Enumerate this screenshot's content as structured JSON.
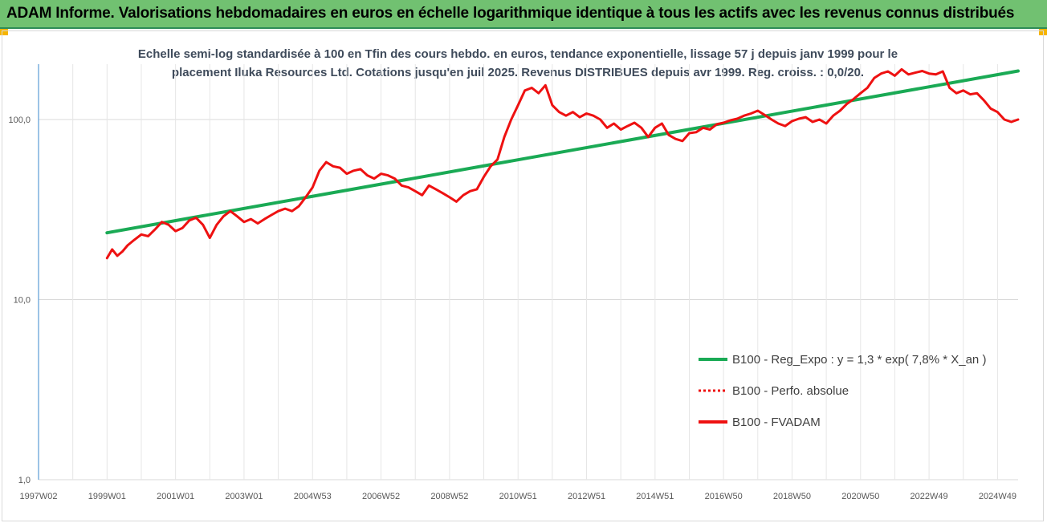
{
  "header": {
    "title": "ADAM Informe. Valorisations hebdomadaires en euros en échelle logarithmique identique à tous les actifs avec les revenus connus distribués"
  },
  "colors": {
    "header_bg": "#71c171",
    "trend": "#1aaa55",
    "fvadam": "#ee1111",
    "perfo": "#ee1111",
    "grid": "#d9d9d9",
    "axis": "#5b9bd5"
  },
  "chart_data": {
    "type": "line",
    "title": "Echelle semi-log standardisée à 100 en Tfin des cours hebdo. en euros, tendance exponentielle, lissage 57 j depuis janv 1999 pour le placement Iluka Resources Ltd. Cotations jusqu'en juil 2025. Revenus DISTRIBUES depuis avr 1999. Reg. croiss. : 0,0/20.",
    "subtitle_line1": "Echelle semi-log standardisée à 100 en Tfin des cours hebdo. en euros, tendance exponentielle, lissage 57 j depuis janv 1999 pour le",
    "subtitle_line2": "placement Iluka Resources Ltd. Cotations jusqu'en juil 2025. Revenus DISTRIBUES depuis avr 1999. Reg. croiss. : 0,0/20.",
    "y_scale": "log",
    "ylim": [
      1,
      200
    ],
    "y_ticks": [
      {
        "value": 1,
        "label": "1,0"
      },
      {
        "value": 10,
        "label": "10,0"
      },
      {
        "value": 100,
        "label": "100,0"
      }
    ],
    "x_range": [
      1997.0,
      2025.6
    ],
    "x_ticks": [
      {
        "value": 1997.0,
        "label": "1997W02"
      },
      {
        "value": 1999.0,
        "label": "1999W01"
      },
      {
        "value": 2001.0,
        "label": "2001W01"
      },
      {
        "value": 2003.0,
        "label": "2003W01"
      },
      {
        "value": 2005.0,
        "label": "2004W53"
      },
      {
        "value": 2007.0,
        "label": "2006W52"
      },
      {
        "value": 2009.0,
        "label": "2008W52"
      },
      {
        "value": 2011.0,
        "label": "2010W51"
      },
      {
        "value": 2013.0,
        "label": "2012W51"
      },
      {
        "value": 2015.0,
        "label": "2014W51"
      },
      {
        "value": 2017.0,
        "label": "2016W50"
      },
      {
        "value": 2019.0,
        "label": "2018W50"
      },
      {
        "value": 2021.0,
        "label": "2020W50"
      },
      {
        "value": 2023.0,
        "label": "2022W49"
      },
      {
        "value": 2025.0,
        "label": "2024W49"
      }
    ],
    "grid": "vertical",
    "legend_position": "bottom-right",
    "series": [
      {
        "name": "B100 - Reg_Expo : y = 1,3 * exp( 7,8% *  X_an )",
        "style": "solid",
        "color": "#1aaa55",
        "x": [
          1999.0,
          2025.6
        ],
        "y": [
          23.5,
          186
        ]
      },
      {
        "name": "B100 - Perfo. absolue",
        "style": "dotted",
        "color": "#ee1111",
        "x": [],
        "y": []
      },
      {
        "name": "B100 - FVADAM",
        "style": "solid",
        "color": "#ee1111",
        "x": [
          1999.0,
          1999.15,
          1999.3,
          1999.45,
          1999.6,
          1999.8,
          2000.0,
          2000.2,
          2000.4,
          2000.6,
          2000.8,
          2001.0,
          2001.2,
          2001.4,
          2001.6,
          2001.8,
          2002.0,
          2002.2,
          2002.4,
          2002.6,
          2002.8,
          2003.0,
          2003.2,
          2003.4,
          2003.6,
          2003.8,
          2004.0,
          2004.2,
          2004.4,
          2004.6,
          2004.8,
          2005.0,
          2005.2,
          2005.4,
          2005.6,
          2005.8,
          2006.0,
          2006.2,
          2006.4,
          2006.6,
          2006.8,
          2007.0,
          2007.2,
          2007.4,
          2007.6,
          2007.8,
          2008.0,
          2008.2,
          2008.4,
          2008.6,
          2008.8,
          2009.0,
          2009.2,
          2009.4,
          2009.6,
          2009.8,
          2010.0,
          2010.2,
          2010.4,
          2010.6,
          2010.8,
          2011.0,
          2011.2,
          2011.4,
          2011.6,
          2011.8,
          2012.0,
          2012.2,
          2012.4,
          2012.6,
          2012.8,
          2013.0,
          2013.2,
          2013.4,
          2013.6,
          2013.8,
          2014.0,
          2014.2,
          2014.4,
          2014.6,
          2014.8,
          2015.0,
          2015.2,
          2015.4,
          2015.6,
          2015.8,
          2016.0,
          2016.2,
          2016.4,
          2016.6,
          2016.8,
          2017.0,
          2017.2,
          2017.4,
          2017.6,
          2017.8,
          2018.0,
          2018.2,
          2018.4,
          2018.6,
          2018.8,
          2019.0,
          2019.2,
          2019.4,
          2019.6,
          2019.8,
          2020.0,
          2020.2,
          2020.4,
          2020.6,
          2020.8,
          2021.0,
          2021.2,
          2021.4,
          2021.6,
          2021.8,
          2022.0,
          2022.2,
          2022.4,
          2022.6,
          2022.8,
          2023.0,
          2023.2,
          2023.4,
          2023.6,
          2023.8,
          2024.0,
          2024.2,
          2024.4,
          2024.6,
          2024.8,
          2025.0,
          2025.2,
          2025.4,
          2025.6
        ],
        "y": [
          17,
          19,
          17.5,
          18.5,
          20,
          21.5,
          23,
          22.5,
          24.5,
          27,
          26,
          24,
          25,
          27.5,
          28.5,
          26,
          22,
          26,
          29,
          31,
          29,
          27,
          28,
          26.5,
          28,
          29.5,
          31,
          32,
          31,
          33,
          37,
          42,
          52,
          58,
          55,
          54,
          50,
          52,
          53,
          49,
          47,
          50,
          49,
          47,
          43,
          42,
          40,
          38,
          43,
          41,
          39,
          37,
          35,
          38,
          40,
          41,
          48,
          55,
          60,
          80,
          100,
          120,
          145,
          150,
          140,
          155,
          120,
          110,
          105,
          110,
          103,
          108,
          105,
          100,
          90,
          95,
          88,
          92,
          96,
          90,
          80,
          90,
          95,
          82,
          78,
          76,
          84,
          85,
          90,
          88,
          94,
          96,
          99,
          101,
          105,
          108,
          112,
          106,
          100,
          95,
          92,
          98,
          101,
          103,
          97,
          100,
          95,
          105,
          112,
          122,
          130,
          140,
          150,
          170,
          180,
          185,
          175,
          190,
          178,
          182,
          186,
          180,
          178,
          185,
          150,
          140,
          145,
          138,
          140,
          128,
          115,
          110,
          100,
          97,
          100
        ]
      }
    ]
  }
}
